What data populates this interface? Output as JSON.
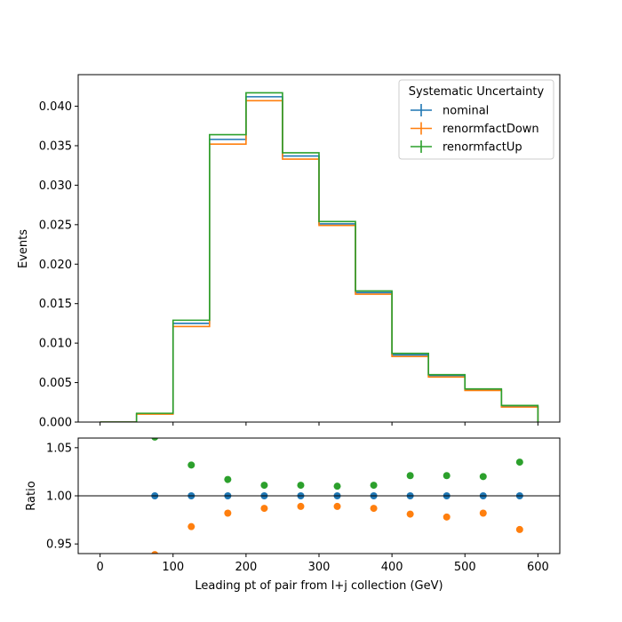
{
  "chart_data": [
    {
      "type": "step",
      "panel": "main",
      "ylabel": "Events",
      "xlim": [
        -30,
        630
      ],
      "ylim": [
        0,
        0.044
      ],
      "yticks": [
        "0.000",
        "0.005",
        "0.010",
        "0.015",
        "0.020",
        "0.025",
        "0.030",
        "0.035",
        "0.040"
      ],
      "bin_edges": [
        0,
        50,
        100,
        150,
        200,
        250,
        300,
        350,
        400,
        450,
        500,
        550,
        600
      ],
      "legend": {
        "title": "Systematic Uncertainty",
        "position": "top-right"
      },
      "series": [
        {
          "name": "nominal",
          "color": "#1f77b4",
          "values": [
            0.0,
            0.00105,
            0.0125,
            0.0358,
            0.0412,
            0.0337,
            0.0251,
            0.0164,
            0.0085,
            0.0059,
            0.0041,
            0.002
          ]
        },
        {
          "name": "renormfactDown",
          "color": "#ff7f0e",
          "values": [
            0.0,
            0.001,
            0.0121,
            0.0352,
            0.0407,
            0.0333,
            0.0249,
            0.0162,
            0.0083,
            0.0057,
            0.004,
            0.0019
          ]
        },
        {
          "name": "renormfactUp",
          "color": "#2ca02c",
          "values": [
            0.0,
            0.00111,
            0.0129,
            0.0364,
            0.0417,
            0.0341,
            0.0254,
            0.0166,
            0.0087,
            0.006,
            0.0042,
            0.0021
          ]
        }
      ]
    },
    {
      "type": "scatter",
      "panel": "ratio",
      "xlabel": "Leading pt of pair from l+j collection (GeV)",
      "ylabel": "Ratio",
      "xlim": [
        -30,
        630
      ],
      "ylim": [
        0.94,
        1.06
      ],
      "xticks": [
        0,
        100,
        200,
        300,
        400,
        500,
        600
      ],
      "yticks": [
        "0.95",
        "1.00",
        "1.05"
      ],
      "reference_line": 1.0,
      "x": [
        75,
        125,
        175,
        225,
        275,
        325,
        375,
        425,
        475,
        525,
        575
      ],
      "series": [
        {
          "name": "nominal",
          "color": "#1f77b4",
          "values": [
            1.0,
            1.0,
            1.0,
            1.0,
            1.0,
            1.0,
            1.0,
            1.0,
            1.0,
            1.0,
            1.0
          ]
        },
        {
          "name": "renormfactDown",
          "color": "#ff7f0e",
          "values": [
            0.939,
            0.968,
            0.982,
            0.987,
            0.989,
            0.989,
            0.987,
            0.981,
            0.978,
            0.982,
            0.965
          ]
        },
        {
          "name": "renormfactUp",
          "color": "#2ca02c",
          "values": [
            1.061,
            1.032,
            1.017,
            1.011,
            1.011,
            1.01,
            1.011,
            1.021,
            1.021,
            1.02,
            1.035
          ]
        }
      ]
    }
  ]
}
